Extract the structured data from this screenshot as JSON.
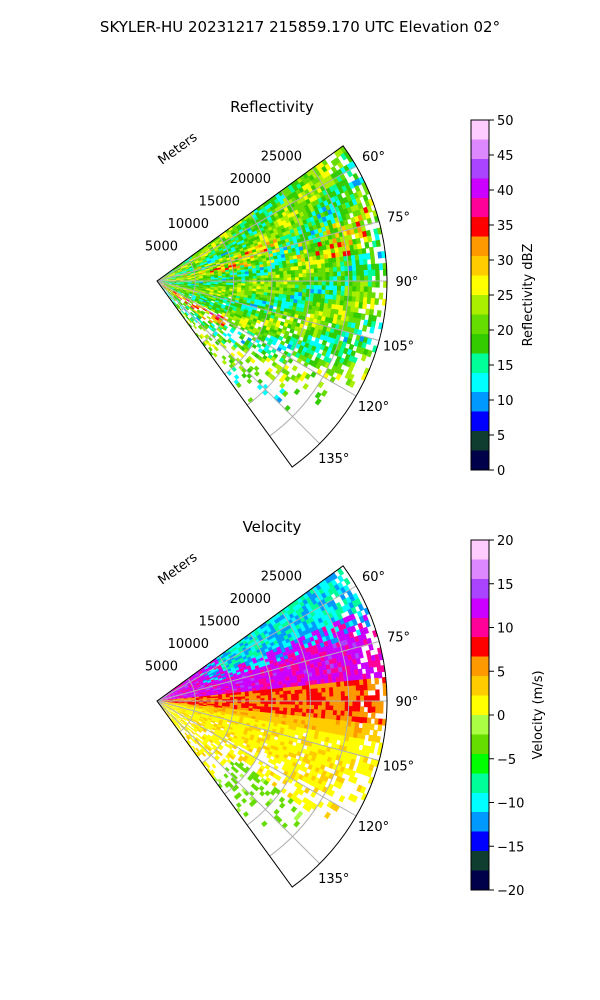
{
  "figure": {
    "suptitle": "SKYLER-HU  20231217  215859.170 UTC Elevation 02°"
  },
  "chart_data": [
    {
      "type": "heatmap",
      "title": "Reflectivity",
      "radial_axis_label": "Meters",
      "radial_ticks": [
        "5000",
        "10000",
        "15000",
        "20000",
        "25000"
      ],
      "radial_tick_values": [
        5000,
        10000,
        15000,
        20000,
        25000
      ],
      "azimuth_ticks": [
        "60°",
        "75°",
        "90°",
        "105°",
        "120°",
        "135°"
      ],
      "azimuth_tick_values": [
        60,
        75,
        90,
        105,
        120,
        135
      ],
      "sector_degrees": [
        54,
        144
      ],
      "range_max_m": 30000,
      "grid": true,
      "colorbar": {
        "label": "Reflectivity dBZ",
        "range": [
          0,
          50
        ],
        "ticks": [
          "0",
          "5",
          "10",
          "15",
          "20",
          "25",
          "30",
          "35",
          "40",
          "45",
          "50"
        ],
        "palette": [
          "#00004a",
          "#0f3d2f",
          "#0000ff",
          "#0099ff",
          "#00ffff",
          "#00ff99",
          "#33cc00",
          "#66dd00",
          "#aaee00",
          "#ffff00",
          "#ffcc00",
          "#ff9900",
          "#ff0000",
          "#ff0099",
          "#cc00ff",
          "#aa44ff",
          "#dd88ff",
          "#ffccff"
        ]
      }
    },
    {
      "type": "heatmap",
      "title": "Velocity",
      "radial_axis_label": "Meters",
      "radial_ticks": [
        "5000",
        "10000",
        "15000",
        "20000",
        "25000"
      ],
      "radial_tick_values": [
        5000,
        10000,
        15000,
        20000,
        25000
      ],
      "azimuth_ticks": [
        "60°",
        "75°",
        "90°",
        "105°",
        "120°",
        "135°"
      ],
      "azimuth_tick_values": [
        60,
        75,
        90,
        105,
        120,
        135
      ],
      "sector_degrees": [
        54,
        144
      ],
      "range_max_m": 30000,
      "grid": true,
      "colorbar": {
        "label": "Velocity (m/s)",
        "range": [
          -20,
          20
        ],
        "ticks": [
          "−20",
          "−15",
          "−10",
          "−5",
          "0",
          "5",
          "10",
          "15",
          "20"
        ],
        "palette": [
          "#00004a",
          "#0f3d2f",
          "#0000ff",
          "#0099ff",
          "#00ffff",
          "#00ff99",
          "#00ff00",
          "#66dd00",
          "#aaff44",
          "#ffff00",
          "#ffcc00",
          "#ff9900",
          "#ff0000",
          "#ff0099",
          "#cc00ff",
          "#aa44ff",
          "#dd88ff",
          "#ffccff"
        ]
      }
    }
  ]
}
